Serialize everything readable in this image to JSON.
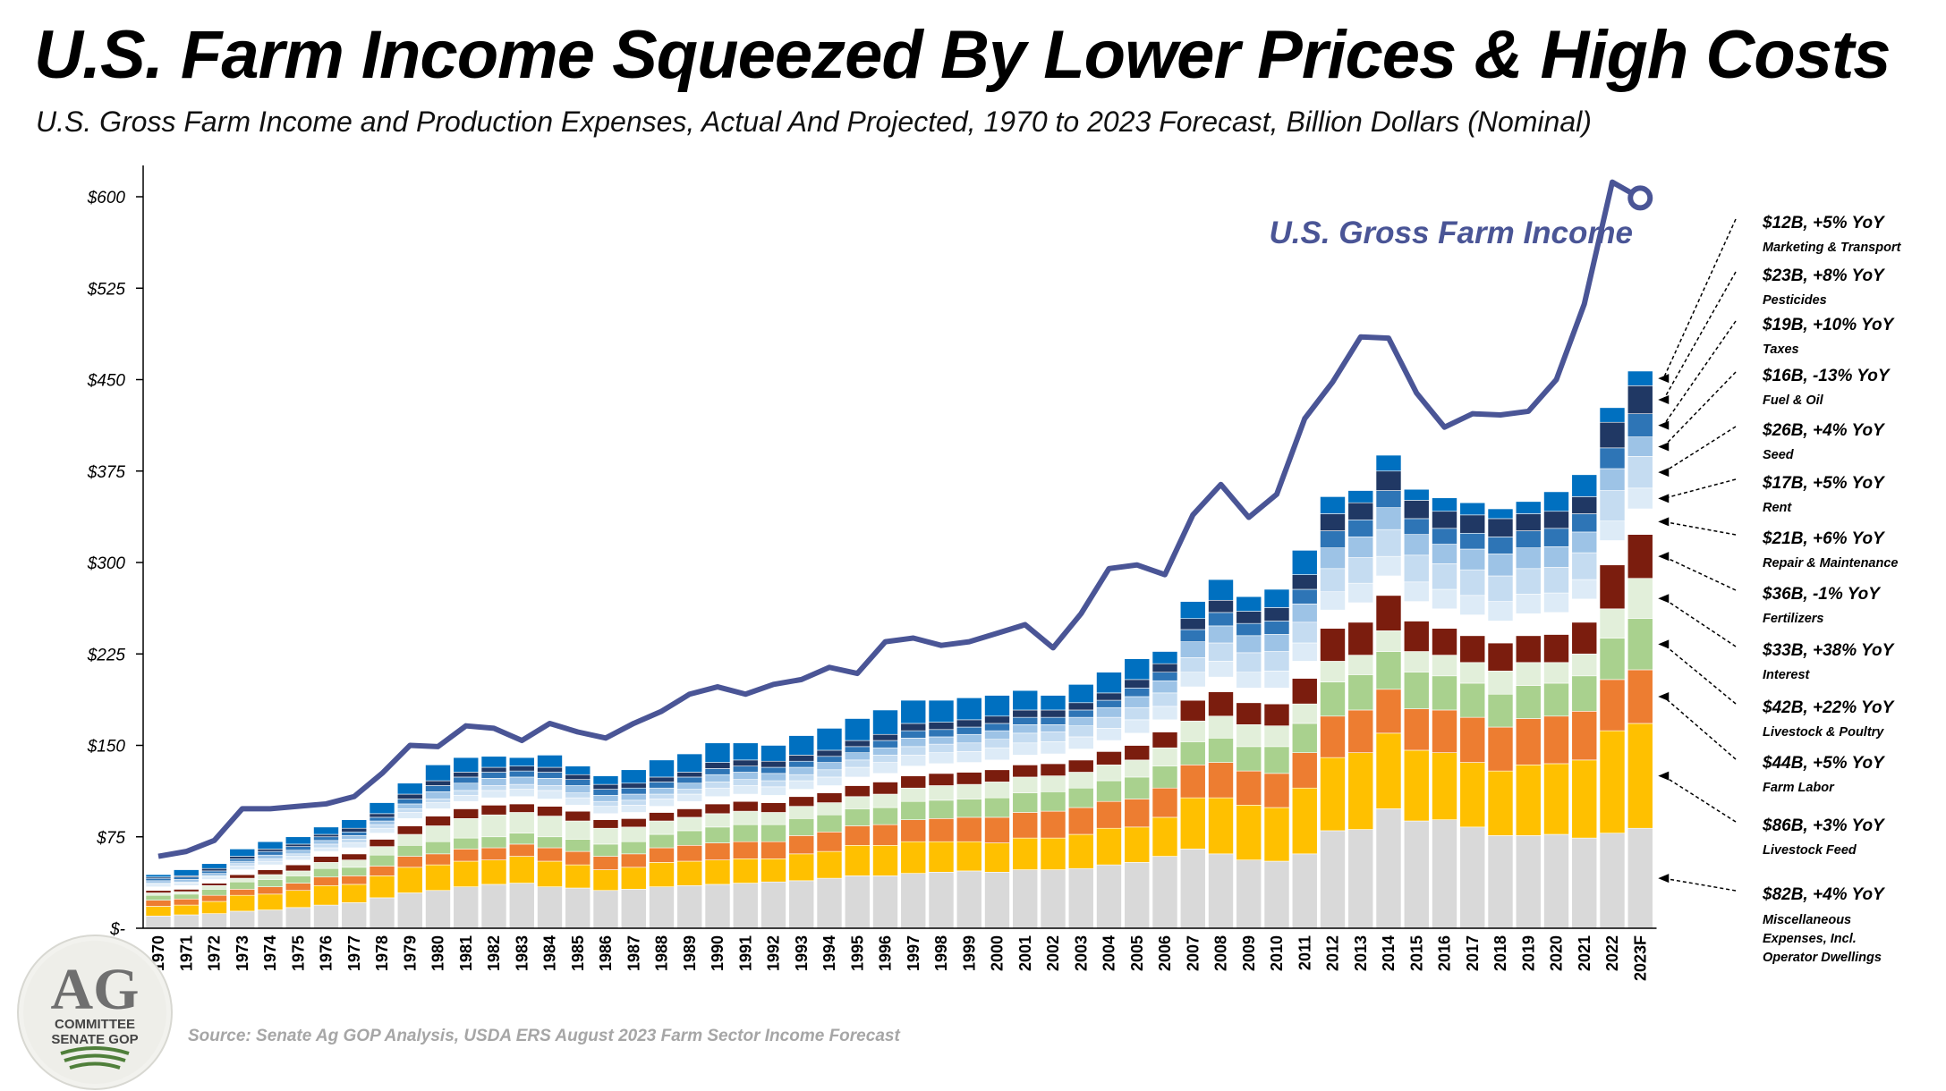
{
  "title": "U.S. Farm Income Squeezed By Lower Prices & High Costs",
  "subtitle": "U.S. Gross Farm Income and Production Expenses, Actual And Projected, 1970 to 2023 Forecast, Billion Dollars (Nominal)",
  "source": "Source: Senate Ag GOP Analysis, USDA ERS August 2023 Farm Sector Income Forecast",
  "logo": {
    "line1": "AG",
    "line2": "COMMITTEE",
    "line3": "SENATE GOP"
  },
  "chart_data": {
    "type": "bar",
    "stacked": true,
    "title": "U.S. Gross Farm Income and Production Expenses",
    "ylabel": "Billion Dollars (Nominal)",
    "ylim": [
      0,
      625
    ],
    "yticks": [
      0,
      75,
      150,
      225,
      300,
      375,
      450,
      525,
      600
    ],
    "ytick_labels": [
      "$-",
      "$75",
      "$150",
      "$225",
      "$300",
      "$375",
      "$450",
      "$525",
      "$600"
    ],
    "categories": [
      "1970",
      "1971",
      "1972",
      "1973",
      "1974",
      "1975",
      "1976",
      "1977",
      "1978",
      "1979",
      "1980",
      "1981",
      "1982",
      "1983",
      "1984",
      "1985",
      "1986",
      "1987",
      "1988",
      "1989",
      "1990",
      "1991",
      "1992",
      "1993",
      "1994",
      "1995",
      "1996",
      "1997",
      "1998",
      "1999",
      "2000",
      "2001",
      "2002",
      "2003",
      "2004",
      "2005",
      "2006",
      "2007",
      "2008",
      "2009",
      "2010",
      "2011",
      "2012",
      "2013",
      "2014",
      "2015",
      "2016",
      "2017",
      "2018",
      "2019",
      "2020",
      "2021",
      "2022",
      "2023F"
    ],
    "expense_totals": [
      44,
      47,
      53,
      65,
      71,
      75,
      83,
      89,
      103,
      123,
      134,
      140,
      141,
      140,
      142,
      133,
      125,
      130,
      138,
      145,
      152,
      152,
      150,
      158,
      164,
      172,
      179,
      187,
      186,
      188,
      191,
      195,
      191,
      200,
      210,
      221,
      233,
      268,
      286,
      272,
      278,
      306,
      354,
      359,
      392,
      358,
      349,
      349,
      344,
      348,
      358,
      372,
      427,
      458
    ],
    "series": [
      {
        "name": "Miscellaneous Expenses, Incl. Operator Dwellings",
        "color": "#d9d9d9",
        "annotation": "$82B, +4% YoY",
        "values": [
          10,
          11,
          12,
          14,
          15,
          17,
          19,
          21,
          25,
          29,
          31,
          34,
          36,
          37,
          34,
          33,
          31,
          32,
          34,
          35,
          36,
          37,
          38,
          39,
          41,
          43,
          43,
          45,
          46,
          47,
          46,
          48,
          48,
          49,
          52,
          54,
          59,
          65,
          61,
          56,
          55,
          61,
          80,
          81,
          98,
          88,
          89,
          83,
          76,
          76,
          77,
          74,
          78,
          82
        ]
      },
      {
        "name": "Livestock Feed",
        "color": "#ffc000",
        "annotation": "$86B, +3% YoY",
        "values": [
          8,
          8,
          10,
          13,
          13,
          14,
          16,
          15,
          18,
          21,
          21,
          21,
          20,
          22,
          21,
          19,
          17,
          18,
          20,
          20,
          20,
          20,
          19,
          22,
          22,
          25,
          25,
          26,
          25,
          24,
          24,
          26,
          26,
          28,
          30,
          29,
          32,
          42,
          46,
          45,
          44,
          54,
          60,
          63,
          62,
          58,
          55,
          53,
          53,
          58,
          58,
          64,
          84,
          86
        ]
      },
      {
        "name": "Farm Labor",
        "color": "#ed7d31",
        "annotation": "$44B, +5% YoY",
        "values": [
          5,
          5,
          5,
          5,
          6,
          6,
          7,
          7,
          8,
          9,
          9,
          10,
          10,
          10,
          11,
          11,
          11,
          11,
          12,
          13,
          14,
          14,
          14,
          15,
          16,
          16,
          17,
          18,
          19,
          20,
          21,
          21,
          22,
          22,
          22,
          23,
          24,
          27,
          29,
          28,
          28,
          29,
          34,
          35,
          36,
          34,
          35,
          37,
          36,
          38,
          39,
          40,
          42,
          44
        ]
      },
      {
        "name": "Livestock & Poultry",
        "color": "#a9d18e",
        "annotation": "$42B, +22% YoY",
        "values": [
          4,
          4,
          5,
          6,
          6,
          6,
          7,
          7,
          9,
          9,
          10,
          9,
          9,
          9,
          9,
          10,
          10,
          10,
          11,
          12,
          13,
          14,
          14,
          14,
          14,
          14,
          14,
          15,
          15,
          15,
          16,
          16,
          16,
          16,
          17,
          18,
          18,
          19,
          20,
          20,
          22,
          24,
          28,
          29,
          31,
          30,
          28,
          28,
          27,
          27,
          27,
          29,
          34,
          42
        ]
      },
      {
        "name": "Interest",
        "color": "#e2efda",
        "annotation": "$33B, +38% YoY",
        "values": [
          2,
          2,
          3,
          3,
          4,
          4,
          5,
          6,
          7,
          9,
          13,
          16,
          18,
          17,
          17,
          15,
          13,
          12,
          11,
          11,
          11,
          11,
          10,
          10,
          10,
          10,
          11,
          11,
          12,
          12,
          13,
          13,
          13,
          13,
          13,
          14,
          15,
          17,
          18,
          18,
          17,
          16,
          17,
          16,
          17,
          17,
          17,
          17,
          19,
          19,
          17,
          18,
          24,
          33
        ]
      },
      {
        "name": "Fertilizers",
        "color": "#7b1d0e",
        "annotation": "$36B, -1% YoY",
        "values": [
          2,
          2,
          2,
          3,
          4,
          5,
          5,
          5,
          6,
          7,
          8,
          8,
          8,
          7,
          8,
          8,
          7,
          7,
          7,
          7,
          8,
          8,
          8,
          8,
          8,
          9,
          10,
          10,
          10,
          10,
          10,
          10,
          10,
          10,
          11,
          12,
          13,
          17,
          20,
          18,
          18,
          21,
          27,
          27,
          29,
          25,
          22,
          22,
          23,
          22,
          23,
          26,
          36,
          36
        ]
      },
      {
        "name": "Repair & Maintenance",
        "color": "#ffffff",
        "annotation": "$21B, +6% YoY",
        "values": [
          3,
          3,
          3,
          4,
          4,
          4,
          4,
          5,
          5,
          6,
          6,
          6,
          6,
          6,
          6,
          5,
          5,
          5,
          5,
          6,
          6,
          6,
          6,
          6,
          6,
          7,
          7,
          8,
          8,
          8,
          8,
          8,
          8,
          9,
          9,
          10,
          10,
          11,
          12,
          12,
          13,
          14,
          15,
          16,
          16,
          16,
          16,
          17,
          18,
          18,
          18,
          19,
          20,
          21
        ]
      },
      {
        "name": "Rent",
        "color": "#ddebf7",
        "annotation": "$17B, +5% YoY",
        "values": [
          2,
          2,
          2,
          3,
          3,
          3,
          3,
          4,
          4,
          5,
          5,
          5,
          6,
          6,
          7,
          6,
          6,
          6,
          6,
          6,
          7,
          7,
          7,
          7,
          7,
          8,
          9,
          9,
          9,
          9,
          10,
          10,
          10,
          10,
          10,
          11,
          11,
          12,
          13,
          13,
          14,
          15,
          15,
          16,
          16,
          16,
          16,
          16,
          16,
          16,
          16,
          16,
          16,
          17
        ]
      },
      {
        "name": "Seed",
        "color": "#c5dcf1",
        "annotation": "$26B, +4% YoY",
        "values": [
          1,
          1,
          1,
          2,
          2,
          2,
          3,
          3,
          3,
          3,
          3,
          4,
          4,
          4,
          4,
          4,
          4,
          4,
          4,
          4,
          5,
          5,
          5,
          5,
          6,
          6,
          6,
          7,
          7,
          7,
          7,
          8,
          8,
          9,
          9,
          10,
          11,
          12,
          15,
          16,
          16,
          17,
          19,
          21,
          22,
          22,
          21,
          21,
          21,
          21,
          21,
          22,
          25,
          26
        ]
      },
      {
        "name": "Fuel & Oil",
        "color": "#9dc3e6",
        "annotation": "$16B, -13% YoY",
        "values": [
          2,
          2,
          2,
          2,
          3,
          3,
          3,
          3,
          3,
          4,
          6,
          6,
          6,
          6,
          6,
          6,
          5,
          5,
          5,
          5,
          6,
          6,
          6,
          6,
          6,
          6,
          6,
          7,
          6,
          7,
          7,
          7,
          6,
          7,
          8,
          9,
          10,
          13,
          14,
          14,
          14,
          15,
          17,
          17,
          18,
          17,
          16,
          17,
          18,
          17,
          17,
          17,
          18,
          16
        ]
      },
      {
        "name": "Taxes",
        "color": "#2e75b6",
        "annotation": "$19B, +10% YoY",
        "values": [
          2,
          2,
          2,
          2,
          3,
          3,
          3,
          3,
          3,
          4,
          5,
          5,
          5,
          5,
          5,
          5,
          5,
          5,
          5,
          5,
          5,
          5,
          5,
          5,
          5,
          5,
          6,
          6,
          6,
          6,
          6,
          6,
          6,
          6,
          6,
          7,
          7,
          10,
          11,
          10,
          11,
          12,
          14,
          14,
          14,
          13,
          13,
          13,
          14,
          14,
          15,
          15,
          17,
          19
        ]
      },
      {
        "name": "Pesticides",
        "color": "#203864",
        "annotation": "$23B, +8% YoY",
        "values": [
          1,
          1,
          2,
          2,
          2,
          2,
          2,
          3,
          3,
          4,
          4,
          4,
          4,
          4,
          4,
          4,
          4,
          4,
          4,
          4,
          5,
          5,
          5,
          5,
          5,
          5,
          5,
          6,
          6,
          6,
          6,
          6,
          6,
          6,
          6,
          7,
          7,
          9,
          10,
          10,
          11,
          12,
          14,
          14,
          16,
          15,
          14,
          15,
          15,
          14,
          14,
          14,
          21,
          23
        ]
      },
      {
        "name": "Marketing & Transport",
        "color": "#0070c0",
        "annotation": "$12B, +5% YoY",
        "values": [
          2,
          5,
          4,
          6,
          6,
          6,
          6,
          7,
          9,
          9,
          13,
          12,
          9,
          7,
          10,
          7,
          7,
          11,
          14,
          15,
          16,
          14,
          13,
          16,
          18,
          18,
          20,
          19,
          18,
          18,
          17,
          16,
          12,
          15,
          17,
          17,
          10,
          14,
          17,
          12,
          15,
          20,
          14,
          10,
          13,
          9,
          11,
          10,
          8,
          10,
          16,
          18,
          12,
          12
        ]
      }
    ],
    "line": {
      "name": "U.S. Gross Farm Income",
      "color": "#4a5596",
      "values": [
        59,
        63,
        72,
        98,
        98,
        100,
        102,
        108,
        127,
        150,
        149,
        166,
        164,
        154,
        168,
        161,
        156,
        168,
        178,
        192,
        198,
        192,
        200,
        204,
        214,
        209,
        235,
        238,
        232,
        235,
        242,
        249,
        230,
        258,
        295,
        298,
        290,
        339,
        364,
        337,
        356,
        418,
        448,
        485,
        484,
        439,
        411,
        422,
        421,
        424,
        450,
        512,
        612,
        599
      ]
    }
  }
}
